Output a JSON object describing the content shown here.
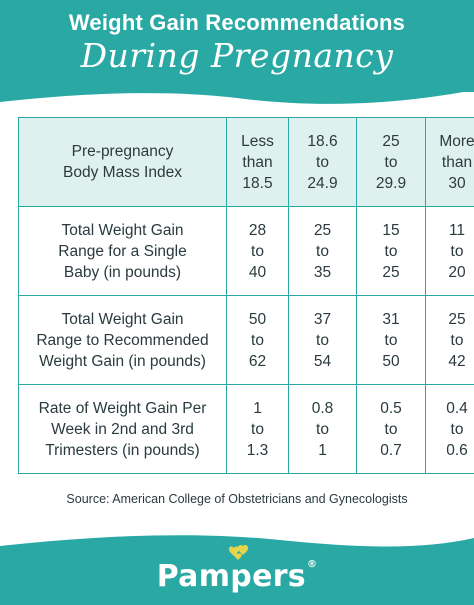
{
  "header": {
    "title": "Weight Gain Recommendations",
    "subtitle": "During Pregnancy"
  },
  "table": {
    "rows": [
      {
        "label": [
          "Pre-pregnancy",
          "Body Mass Index"
        ],
        "values": [
          [
            "Less",
            "than",
            "18.5"
          ],
          [
            "18.6",
            "to",
            "24.9"
          ],
          [
            "25",
            "to",
            "29.9"
          ],
          [
            "More",
            "than",
            "30"
          ]
        ]
      },
      {
        "label": [
          "Total Weight Gain",
          "Range for a Single",
          "Baby (in pounds)"
        ],
        "values": [
          [
            "28",
            "to",
            "40"
          ],
          [
            "25",
            "to",
            "35"
          ],
          [
            "15",
            "to",
            "25"
          ],
          [
            "11",
            "to",
            "20"
          ]
        ]
      },
      {
        "label": [
          "Total Weight Gain",
          "Range to Recommended",
          "Weight Gain (in pounds)"
        ],
        "values": [
          [
            "50",
            "to",
            "62"
          ],
          [
            "37",
            "to",
            "54"
          ],
          [
            "31",
            "to",
            "50"
          ],
          [
            "25",
            "to",
            "42"
          ]
        ]
      },
      {
        "label": [
          "Rate of Weight Gain Per",
          "Week in 2nd and 3rd",
          "Trimesters (in pounds)"
        ],
        "values": [
          [
            "1",
            "to",
            "1.3"
          ],
          [
            "0.8",
            "to",
            "1"
          ],
          [
            "0.5",
            "to",
            "0.7"
          ],
          [
            "0.4",
            "to",
            "0.6"
          ]
        ]
      }
    ]
  },
  "source": "Source: American College of Obstetricians and Gynecologists",
  "footer": {
    "brand": "Pampers",
    "brand_mark": "®",
    "logo_icon": "hearts-icon"
  },
  "colors": {
    "teal": "#2aa9a4",
    "header_fill": "#dff1ef",
    "text": "#2a3a3e",
    "logo": "#e6d44a"
  }
}
